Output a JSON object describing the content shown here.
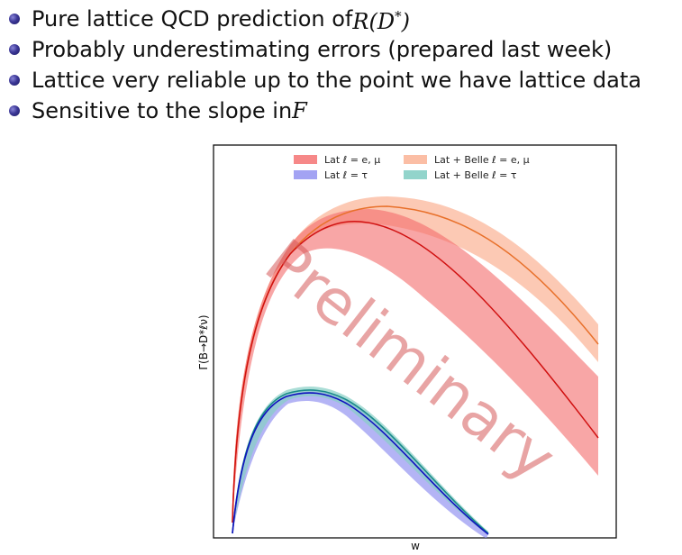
{
  "bullets": [
    {
      "prefix": "Pure lattice QCD prediction of ",
      "math": "R(D",
      "sup": "*",
      "close": ")"
    },
    {
      "text": "Probably underestimating errors (prepared last week)"
    },
    {
      "text": "Lattice very reliable up to the point we have lattice data"
    },
    {
      "prefix": "Sensitive to the slope in ",
      "script": "F"
    }
  ],
  "chart_data": {
    "type": "line",
    "xlabel": "w",
    "ylabel": "Γ(B→D*ℓν)",
    "watermark": "Preliminary",
    "legend_position": "top",
    "series": [
      {
        "name": "Lat ℓ = e, μ",
        "color": "#d01010",
        "band_color": "#f46a6a"
      },
      {
        "name": "Lat ℓ = τ",
        "color": "#1010c0",
        "band_color": "#8c8cf0"
      },
      {
        "name": "Lat + Belle ℓ = e, μ",
        "color": "#e8702a",
        "band_color": "#fbb79b"
      },
      {
        "name": "Lat + Belle ℓ = τ",
        "color": "#1a8a8a",
        "band_color": "#86cfc5"
      }
    ]
  }
}
